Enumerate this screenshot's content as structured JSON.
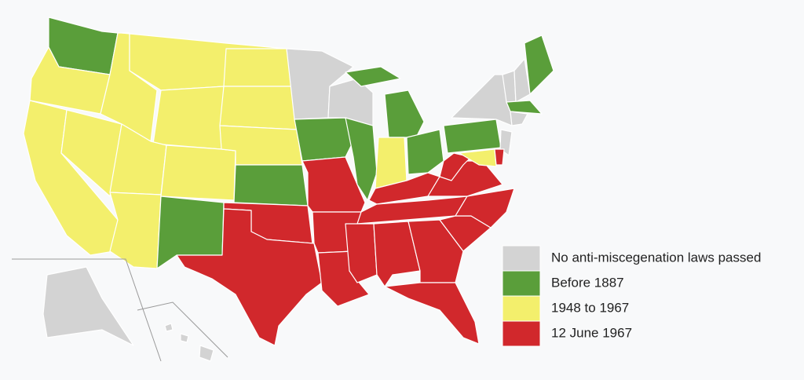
{
  "legend": {
    "items": [
      {
        "label": "No anti-miscegenation laws passed",
        "color": "#d3d3d3"
      },
      {
        "label": "Before 1887",
        "color": "#5a9e3a"
      },
      {
        "label": "1948 to 1967",
        "color": "#f3ef6c"
      },
      {
        "label": "12 June 1967",
        "color": "#d1282c"
      }
    ]
  }
}
